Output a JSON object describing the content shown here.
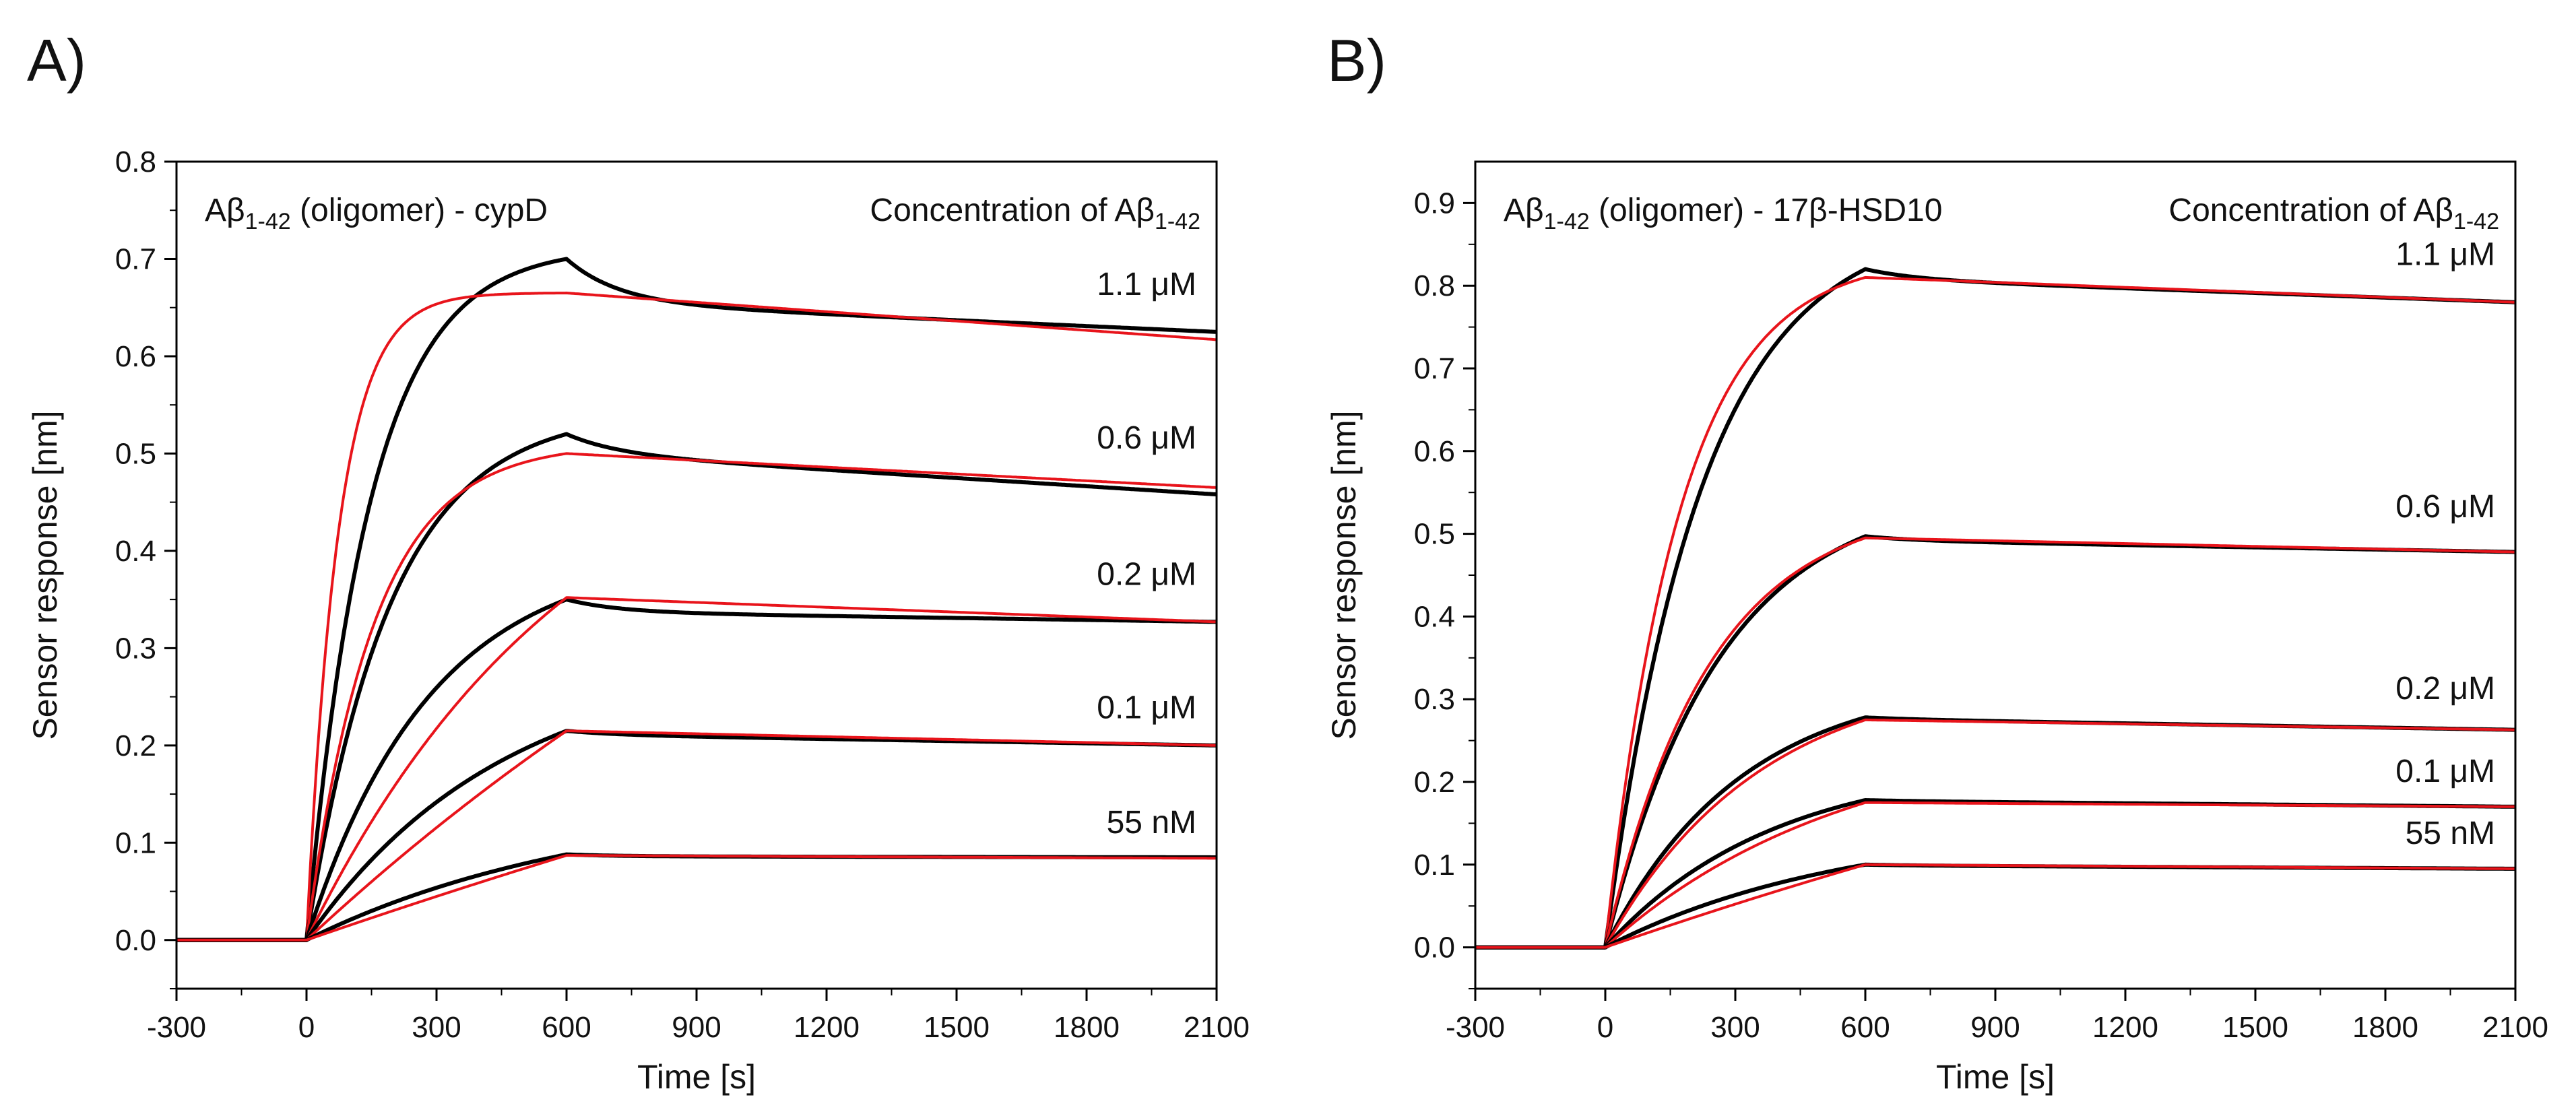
{
  "figure": {
    "panels": [
      {
        "label": "A)",
        "title_prefix": "A",
        "title_beta": "β",
        "title_sub": "1-42",
        "title_suffix": " (oligomer) - cypD",
        "legend_title_prefix": "Concentration of A",
        "legend_title_beta": "β",
        "legend_title_sub": "1-42"
      },
      {
        "label": "B)",
        "title_prefix": "A",
        "title_beta": "β",
        "title_sub": "1-42",
        "title_suffix": " (oligomer) - 17β-HSD10",
        "legend_title_prefix": "Concentration of A",
        "legend_title_beta": "β",
        "legend_title_sub": "1-42"
      }
    ]
  },
  "chart_data": [
    {
      "type": "line",
      "panel": "A",
      "xlabel": "Time [s]",
      "ylabel": "Sensor response [nm]",
      "xlim": [
        -300,
        2100
      ],
      "ylim": [
        -0.05,
        0.8
      ],
      "xticks": [
        -300,
        0,
        300,
        600,
        900,
        1200,
        1500,
        1800,
        2100
      ],
      "yticks": [
        0.0,
        0.1,
        0.2,
        0.3,
        0.4,
        0.5,
        0.6,
        0.7,
        0.8
      ],
      "ytick_labels": [
        "0.0",
        "0.1",
        "0.2",
        "0.3",
        "0.4",
        "0.5",
        "0.6",
        "0.7",
        "0.8"
      ],
      "association_end": 600,
      "series": [
        {
          "name": "1.1 μM",
          "label": "1.1 μM",
          "measured": {
            "peak": 0.7,
            "assoc_rate": 0.0068,
            "dissoc_end": 0.625,
            "early_drop": 0.045
          },
          "fit": {
            "plateau": 0.665,
            "assoc_rate": 0.0135,
            "dissoc_end": 0.617
          },
          "label_y": 0.663
        },
        {
          "name": "0.6 μM",
          "label": "0.6 μM",
          "measured": {
            "peak": 0.52,
            "assoc_rate": 0.0052,
            "dissoc_end": 0.458,
            "early_drop": 0.02
          },
          "fit": {
            "plateau": 0.5,
            "assoc_rate": 0.0065,
            "dissoc_end": 0.465
          },
          "label_y": 0.505
        },
        {
          "name": "0.2 μM",
          "label": "0.2 μM",
          "measured": {
            "peak": 0.35,
            "assoc_rate": 0.0035,
            "dissoc_end": 0.327,
            "early_drop": 0.013
          },
          "fit": {
            "plateau": 0.352,
            "assoc_rate": 0.0016,
            "dissoc_end": 0.327
          },
          "label_y": 0.365
        },
        {
          "name": "0.1 μM",
          "label": "0.1 μM",
          "measured": {
            "peak": 0.215,
            "assoc_rate": 0.0022,
            "dissoc_end": 0.2,
            "early_drop": 0.004
          },
          "fit": {
            "plateau": 0.215,
            "assoc_rate": 0.0005,
            "dissoc_end": 0.2
          },
          "label_y": 0.228
        },
        {
          "name": "55 nM",
          "label": "55 nM",
          "measured": {
            "peak": 0.088,
            "assoc_rate": 0.0015,
            "dissoc_end": 0.085,
            "early_drop": 0.002
          },
          "fit": {
            "plateau": 0.087,
            "assoc_rate": 0.0002,
            "dissoc_end": 0.084
          },
          "label_y": 0.11
        }
      ]
    },
    {
      "type": "line",
      "panel": "B",
      "xlabel": "Time [s]",
      "ylabel": "Sensor response [nm]",
      "xlim": [
        -300,
        2100
      ],
      "ylim": [
        -0.05,
        0.95
      ],
      "xticks": [
        -300,
        0,
        300,
        600,
        900,
        1200,
        1500,
        1800,
        2100
      ],
      "yticks": [
        0.0,
        0.1,
        0.2,
        0.3,
        0.4,
        0.5,
        0.6,
        0.7,
        0.8,
        0.9
      ],
      "ytick_labels": [
        "0.0",
        "0.1",
        "0.2",
        "0.3",
        "0.4",
        "0.5",
        "0.6",
        "0.7",
        "0.8",
        "0.9"
      ],
      "association_end": 600,
      "series": [
        {
          "name": "1.1 μM",
          "label": "1.1 μM",
          "measured": {
            "peak": 0.82,
            "assoc_rate": 0.0045,
            "dissoc_end": 0.78,
            "early_drop": 0.012
          },
          "fit": {
            "plateau": 0.81,
            "assoc_rate": 0.0058,
            "dissoc_end": 0.78
          },
          "label_y": 0.825
        },
        {
          "name": "0.6 μM",
          "label": "0.6 μM",
          "measured": {
            "peak": 0.497,
            "assoc_rate": 0.0038,
            "dissoc_end": 0.478,
            "early_drop": 0.005
          },
          "fit": {
            "plateau": 0.495,
            "assoc_rate": 0.0042,
            "dissoc_end": 0.478
          },
          "label_y": 0.52
        },
        {
          "name": "0.2 μM",
          "label": "0.2 μM",
          "measured": {
            "peak": 0.278,
            "assoc_rate": 0.0032,
            "dissoc_end": 0.263,
            "early_drop": 0.002
          },
          "fit": {
            "plateau": 0.275,
            "assoc_rate": 0.0028,
            "dissoc_end": 0.263
          },
          "label_y": 0.3
        },
        {
          "name": "0.1 μM",
          "label": "0.1 μM",
          "measured": {
            "peak": 0.178,
            "assoc_rate": 0.0026,
            "dissoc_end": 0.17,
            "early_drop": 0.001
          },
          "fit": {
            "plateau": 0.175,
            "assoc_rate": 0.0018,
            "dissoc_end": 0.17
          },
          "label_y": 0.2
        },
        {
          "name": "55 nM",
          "label": "55 nM",
          "measured": {
            "peak": 0.1,
            "assoc_rate": 0.0018,
            "dissoc_end": 0.095,
            "early_drop": 0.001
          },
          "fit": {
            "plateau": 0.1,
            "assoc_rate": 0.0003,
            "dissoc_end": 0.095
          },
          "label_y": 0.125
        }
      ]
    }
  ]
}
